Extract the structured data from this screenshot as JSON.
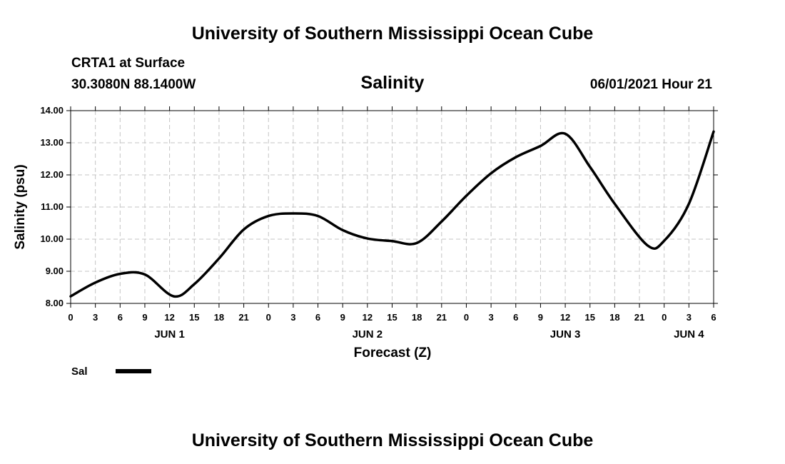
{
  "header": {
    "top_title": "University of Southern Mississippi Ocean Cube",
    "station": "CRTA1 at Surface",
    "location": "30.3080N  88.1400W",
    "datetime": "06/01/2021 Hour 21",
    "bottom_title": "University of Southern Mississippi Ocean Cube"
  },
  "chart_data": {
    "type": "line",
    "title": "Salinity",
    "xlabel": "Forecast (Z)",
    "ylabel": "Salinity (psu)",
    "ylim": [
      8.0,
      14.0
    ],
    "xlim": [
      0,
      78
    ],
    "x_unit": "hours since Jun 1 00Z",
    "y_ticks": [
      "8.00",
      "9.00",
      "10.00",
      "11.00",
      "12.00",
      "13.00",
      "14.00"
    ],
    "x_tick_labels": [
      "0",
      "3",
      "6",
      "9",
      "12",
      "15",
      "18",
      "21",
      "0",
      "3",
      "6",
      "9",
      "12",
      "15",
      "18",
      "21",
      "0",
      "3",
      "6",
      "9",
      "12",
      "15",
      "18",
      "21",
      "0",
      "3",
      "6"
    ],
    "date_labels": [
      {
        "hour": 12,
        "label": "JUN 1"
      },
      {
        "hour": 36,
        "label": "JUN 2"
      },
      {
        "hour": 60,
        "label": "JUN 3"
      },
      {
        "hour": 75,
        "label": "JUN 4"
      }
    ],
    "grid": true,
    "legend": {
      "position": "bottom-left",
      "entries": [
        {
          "name": "Sal"
        }
      ]
    },
    "series": [
      {
        "name": "Sal",
        "color": "#000000",
        "x": [
          0,
          3,
          6,
          9,
          12.5,
          15,
          18,
          21,
          24,
          27,
          30,
          33,
          36,
          39,
          42,
          45,
          48,
          51,
          54,
          57,
          60,
          63,
          66,
          70,
          72,
          75,
          78
        ],
        "values": [
          8.22,
          8.65,
          8.92,
          8.9,
          8.22,
          8.6,
          9.4,
          10.3,
          10.72,
          10.8,
          10.72,
          10.28,
          10.02,
          9.94,
          9.88,
          10.55,
          11.35,
          12.05,
          12.55,
          12.9,
          13.28,
          12.25,
          11.1,
          9.8,
          9.95,
          11.1,
          13.35
        ]
      }
    ]
  }
}
